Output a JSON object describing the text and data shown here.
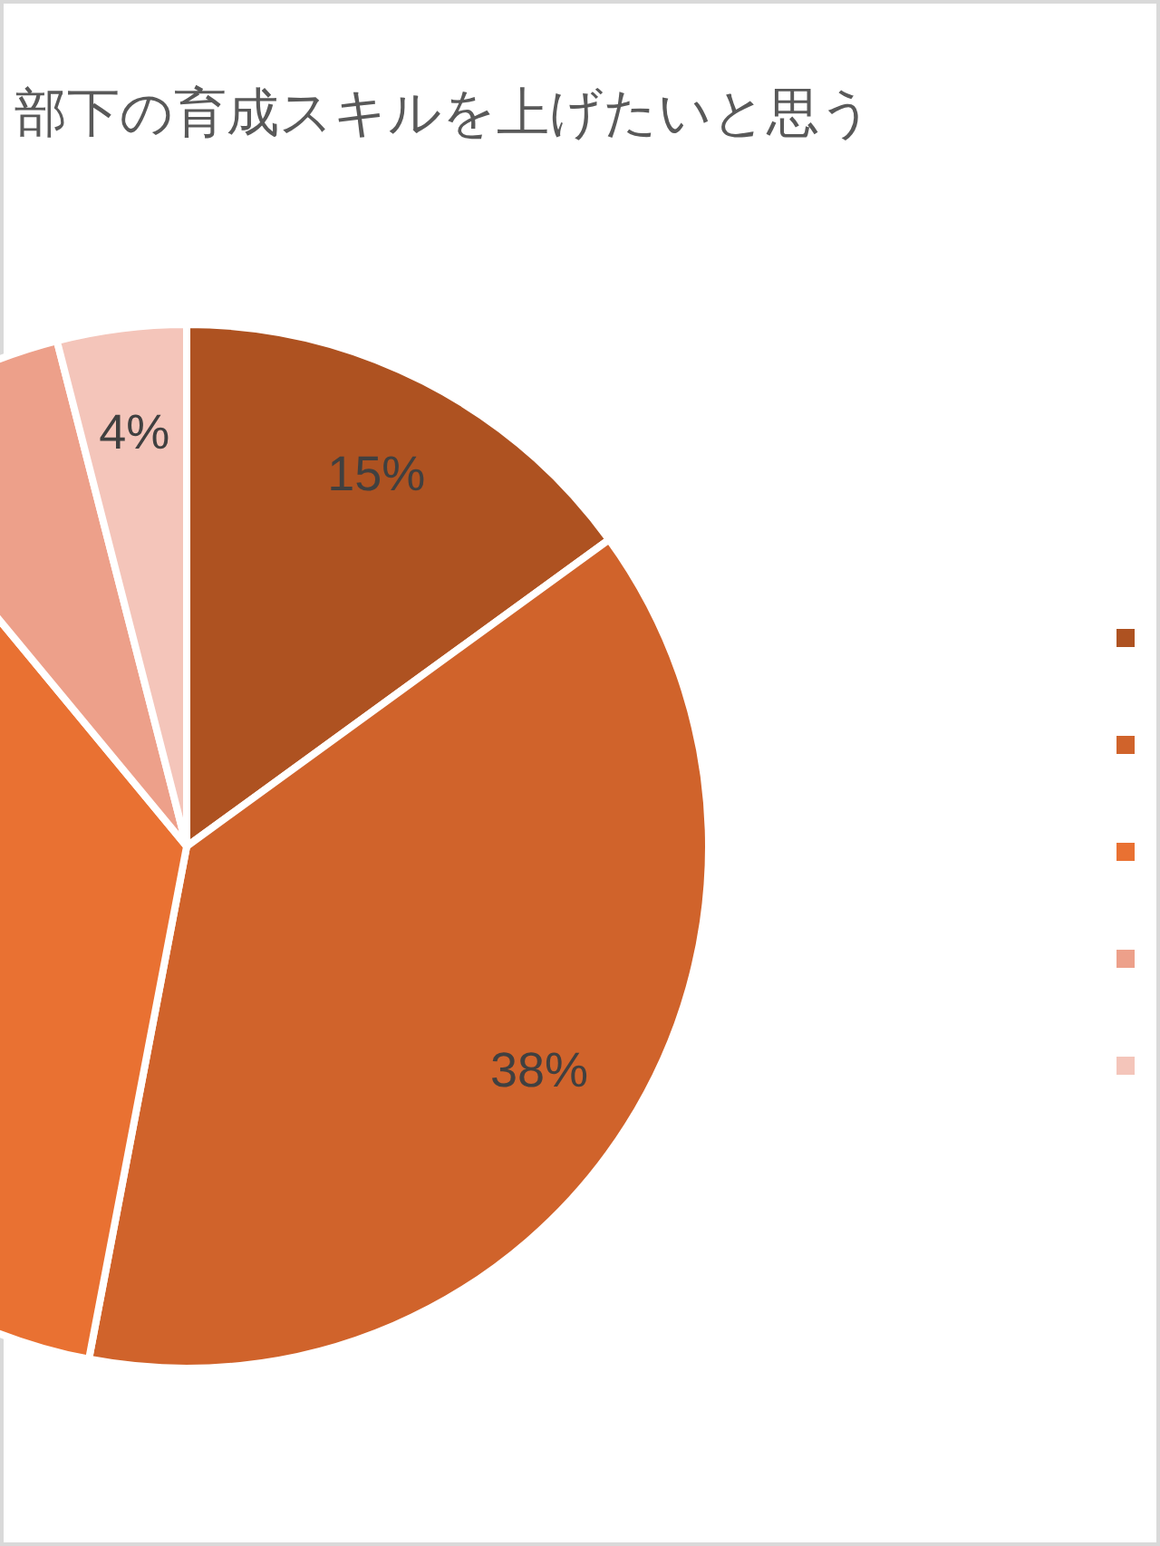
{
  "chart_data": {
    "type": "pie",
    "title": "部下の育成スキルを上げたいと思う",
    "categories": [
      null,
      null,
      null,
      null,
      null
    ],
    "values": [
      15,
      38,
      36,
      7,
      4
    ],
    "colors": [
      "#ae5221",
      "#d0632b",
      "#e97132",
      "#eda08a",
      "#f4c5ba"
    ],
    "value_labels": [
      "15%",
      "38%",
      null,
      null,
      "4%"
    ]
  }
}
